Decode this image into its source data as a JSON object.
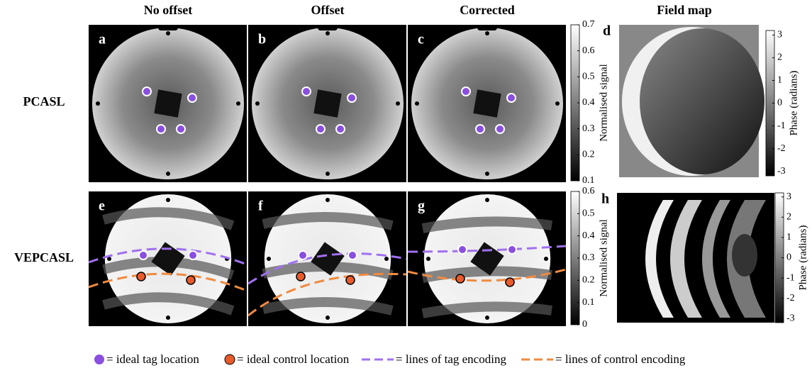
{
  "column_titles": [
    "No offset",
    "Offset",
    "Corrected",
    "Field map"
  ],
  "row_labels": [
    "PCASL",
    "VEPCASL"
  ],
  "panel_labels": [
    "a",
    "b",
    "c",
    "d",
    "e",
    "f",
    "g",
    "h"
  ],
  "colorbars": [
    {
      "label": "Normalised signal",
      "lim": [
        0.1,
        0.7
      ],
      "ticks": [
        0.7,
        0.6,
        0.5,
        0.4,
        0.3,
        0.2,
        0.1
      ]
    },
    {
      "label": "Phase (radians)",
      "lim": [
        -3.2,
        3.2
      ],
      "ticks": [
        3,
        2,
        1,
        0,
        -1,
        -2,
        -3
      ]
    },
    {
      "label": "Normalised signal",
      "lim": [
        0,
        0.6
      ],
      "ticks": [
        0.6,
        0.5,
        0.4,
        0.3,
        0.2,
        0.1,
        0
      ]
    },
    {
      "label": "Phase (radians)",
      "lim": [
        -3.2,
        3.2
      ],
      "ticks": [
        3,
        2,
        1,
        0,
        -1,
        -2,
        -3
      ]
    }
  ],
  "legend": [
    "= ideal tag location",
    "= ideal control location",
    "= lines of tag encoding",
    "= lines of control encoding"
  ]
}
